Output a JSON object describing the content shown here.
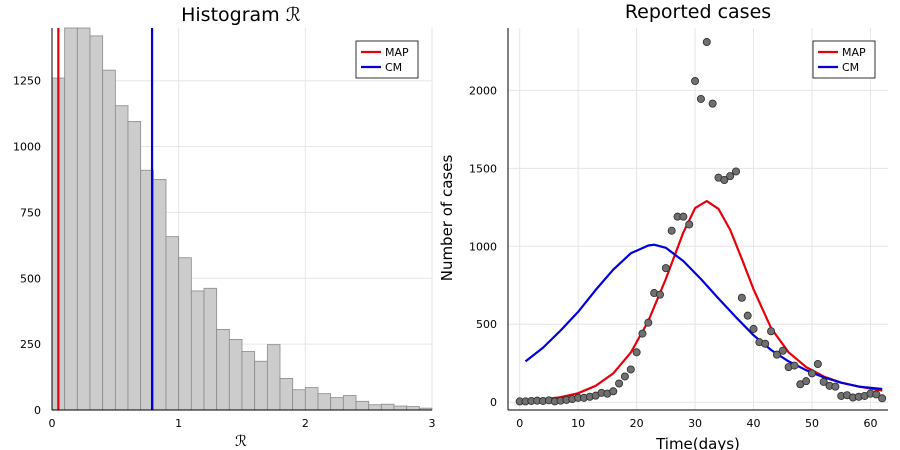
{
  "chart_data": [
    {
      "type": "bar",
      "title": "Histogram ℛ",
      "xlabel": "ℛ",
      "ylabel": "",
      "xlim": [
        0,
        3
      ],
      "ylim": [
        0,
        1450
      ],
      "xticks": [
        "0",
        "1",
        "2",
        "3"
      ],
      "yticks": [
        "0",
        "250",
        "500",
        "750",
        "1000",
        "1250"
      ],
      "bin_width": 0.1,
      "bin_starts": [
        0.0,
        0.1,
        0.2,
        0.3,
        0.4,
        0.5,
        0.6,
        0.7,
        0.8,
        0.9,
        1.0,
        1.1,
        1.2,
        1.3,
        1.4,
        1.5,
        1.6,
        1.7,
        1.8,
        1.9,
        2.0,
        2.1,
        2.2,
        2.3,
        2.4,
        2.5,
        2.6,
        2.7,
        2.8,
        2.9
      ],
      "values": [
        1260,
        1460,
        1460,
        1420,
        1290,
        1155,
        1095,
        910,
        875,
        658,
        578,
        452,
        462,
        306,
        268,
        222,
        185,
        248,
        120,
        77,
        85,
        62,
        47,
        55,
        33,
        20,
        22,
        15,
        13,
        7
      ],
      "series": [
        {
          "name": "MAP",
          "type": "vline",
          "x": 0.05,
          "color": "#e8000b"
        },
        {
          "name": "CM",
          "type": "vline",
          "x": 0.79,
          "color": "#0000dd"
        }
      ],
      "legend": "top-right",
      "grid": true,
      "bar_color": "#cccccc"
    },
    {
      "type": "scatter",
      "title": "Reported cases",
      "xlabel": "Time(days)",
      "ylabel": "Number of cases",
      "xlim": [
        -2,
        63
      ],
      "ylim": [
        -50,
        2400
      ],
      "xticks": [
        "0",
        "10",
        "20",
        "30",
        "40",
        "50",
        "60"
      ],
      "yticks": [
        "0",
        "500",
        "1000",
        "1500",
        "2000"
      ],
      "x": [
        0,
        1,
        2,
        3,
        4,
        5,
        6,
        7,
        8,
        9,
        10,
        11,
        12,
        13,
        14,
        15,
        16,
        17,
        18,
        19,
        20,
        21,
        22,
        23,
        24,
        25,
        26,
        27,
        28,
        29,
        30,
        31,
        32,
        33,
        34,
        35,
        36,
        37,
        38,
        39,
        40,
        41,
        42,
        43,
        44,
        45,
        46,
        47,
        48,
        49,
        50,
        51,
        52,
        53,
        54,
        55,
        56,
        57,
        58,
        59,
        60,
        61,
        62
      ],
      "y": [
        5,
        5,
        8,
        10,
        8,
        12,
        5,
        10,
        15,
        20,
        28,
        28,
        35,
        42,
        60,
        55,
        70,
        120,
        165,
        210,
        320,
        440,
        510,
        700,
        690,
        860,
        1100,
        1190,
        1190,
        1140,
        2060,
        1945,
        2310,
        1915,
        1440,
        1425,
        1450,
        1480,
        670,
        555,
        470,
        385,
        375,
        455,
        305,
        330,
        225,
        235,
        115,
        135,
        185,
        245,
        130,
        105,
        100,
        40,
        45,
        30,
        35,
        40,
        55,
        50,
        25
      ],
      "series": [
        {
          "name": "MAP",
          "type": "line",
          "color": "#e8000b",
          "x": [
            1,
            4,
            7,
            10,
            13,
            16,
            19,
            22,
            25,
            28,
            30,
            32,
            34,
            36,
            38,
            40,
            43,
            46,
            49,
            52,
            55,
            58,
            62
          ],
          "y": [
            10,
            18,
            32,
            58,
            105,
            185,
            318,
            520,
            790,
            1090,
            1245,
            1290,
            1240,
            1105,
            920,
            725,
            475,
            320,
            225,
            165,
            125,
            100,
            75
          ]
        },
        {
          "name": "CM",
          "type": "line",
          "color": "#0000dd",
          "x": [
            1,
            4,
            7,
            10,
            13,
            16,
            19,
            22,
            23,
            25,
            28,
            31,
            34,
            37,
            40,
            43,
            46,
            49,
            52,
            55,
            58,
            62
          ],
          "y": [
            262,
            350,
            460,
            580,
            720,
            850,
            955,
            1005,
            1010,
            990,
            905,
            790,
            665,
            545,
            430,
            335,
            262,
            205,
            160,
            125,
            100,
            85
          ]
        }
      ],
      "legend": "top-right",
      "grid": true,
      "marker_color": "#707070"
    }
  ]
}
